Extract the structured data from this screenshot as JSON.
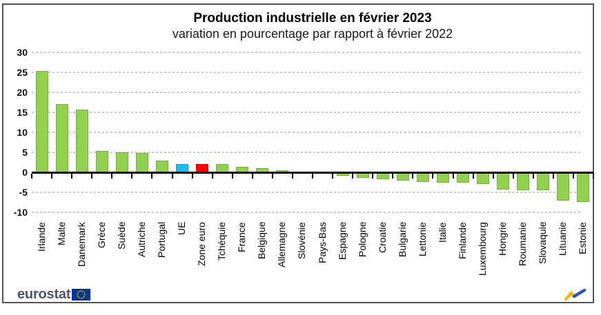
{
  "header": {
    "title": "Production industrielle en février 2023",
    "subtitle": "variation en pourcentage par rapport à février 2022"
  },
  "chart_data": {
    "type": "bar",
    "title": "Production industrielle en février 2023",
    "subtitle": "variation en pourcentage par rapport à février 2022",
    "unit": "%",
    "categories": [
      "Irlande",
      "Malte",
      "Danemark",
      "Grèce",
      "Suède",
      "Autriche",
      "Portugal",
      "UE",
      "Zone euro",
      "Tchéquie",
      "France",
      "Belgique",
      "Allemagne",
      "Slovénie",
      "Pays-Bas",
      "Espagne",
      "Pologne",
      "Croatie",
      "Bulgarie",
      "Lettonie",
      "Italie",
      "Finlande",
      "Luxembourg",
      "Hongrie",
      "Roumanie",
      "Slovaquie",
      "Lituanie",
      "Estonie"
    ],
    "values": [
      25.2,
      17.1,
      15.6,
      5.3,
      5.0,
      4.9,
      2.9,
      2.1,
      2.0,
      2.0,
      1.3,
      1.1,
      0.5,
      -0.1,
      -0.4,
      -0.8,
      -1.4,
      -1.8,
      -2.0,
      -2.4,
      -2.5,
      -2.6,
      -2.9,
      -4.3,
      -4.4,
      -4.5,
      -7.0,
      -7.4
    ],
    "ylim": [
      -10,
      30
    ],
    "yticks": [
      30,
      25,
      20,
      15,
      10,
      5,
      0,
      -5,
      -10
    ],
    "grid": "horizontal-dashed",
    "legend": "none",
    "xlabel": "",
    "ylabel": "",
    "colors": {
      "default_bar": "#92D050",
      "highlight": {
        "UE": "#1FBCF2",
        "Zone euro": "#FF0000"
      },
      "gridline": "#c6c6c6",
      "axis": "#000000"
    }
  },
  "footer": {
    "brand_text": "eurostat",
    "flag_color": "#003399",
    "star_color": "#FFCC00",
    "swoosh_yellow": "#FDB813",
    "swoosh_blue": "#2B50BD"
  }
}
